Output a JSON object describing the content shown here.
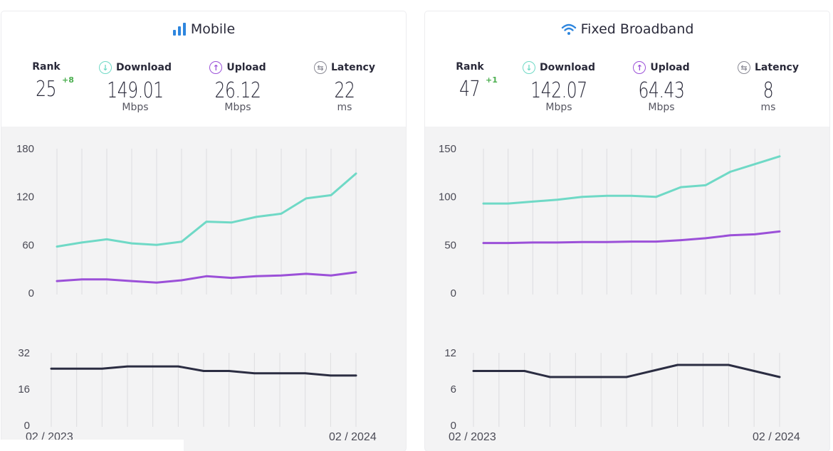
{
  "colors": {
    "download": "#6fd9c6",
    "upload": "#9b50d8",
    "latency": "#2b2d42",
    "latency_icon": "#8a8a95",
    "rank_change": "#4caf50",
    "title_icon": "#2e86de"
  },
  "panels": [
    {
      "title": "Mobile",
      "title_icon": "signal-bars-icon",
      "rank": {
        "label": "Rank",
        "value": "25",
        "change": "+8"
      },
      "download": {
        "label": "Download",
        "value": "149.01",
        "unit": "Mbps"
      },
      "upload": {
        "label": "Upload",
        "value": "26.12",
        "unit": "Mbps"
      },
      "latency": {
        "label": "Latency",
        "value": "22",
        "unit": "ms"
      },
      "date_start": "02 / 2023",
      "date_end": "02 / 2024"
    },
    {
      "title": "Fixed Broadband",
      "title_icon": "wifi-icon",
      "rank": {
        "label": "Rank",
        "value": "47",
        "change": "+1"
      },
      "download": {
        "label": "Download",
        "value": "142.07",
        "unit": "Mbps"
      },
      "upload": {
        "label": "Upload",
        "value": "64.43",
        "unit": "Mbps"
      },
      "latency": {
        "label": "Latency",
        "value": "8",
        "unit": "ms"
      },
      "date_start": "02 / 2023",
      "date_end": "02 / 2024"
    }
  ],
  "chart_data": [
    {
      "type": "line",
      "x": [
        "02/2023",
        "03/2023",
        "04/2023",
        "05/2023",
        "06/2023",
        "07/2023",
        "08/2023",
        "09/2023",
        "10/2023",
        "11/2023",
        "12/2023",
        "01/2024",
        "02/2024"
      ],
      "series": [
        {
          "name": "Download",
          "values": [
            58,
            63,
            67,
            62,
            60,
            64,
            89,
            88,
            95,
            99,
            118,
            122,
            149
          ]
        },
        {
          "name": "Upload",
          "values": [
            15,
            17,
            17,
            15,
            13,
            16,
            21,
            19,
            21,
            22,
            24,
            22,
            26
          ]
        }
      ],
      "yticks": [
        0,
        60,
        120,
        180
      ],
      "ylim": [
        0,
        180
      ]
    },
    {
      "type": "line",
      "x": [
        "02/2023",
        "03/2023",
        "04/2023",
        "05/2023",
        "06/2023",
        "07/2023",
        "08/2023",
        "09/2023",
        "10/2023",
        "11/2023",
        "12/2023",
        "01/2024",
        "02/2024"
      ],
      "series": [
        {
          "name": "Latency",
          "values": [
            25,
            25,
            25,
            26,
            26,
            26,
            24,
            24,
            23,
            23,
            23,
            22,
            22
          ]
        }
      ],
      "yticks": [
        0,
        16,
        32
      ],
      "ylim": [
        0,
        32
      ]
    },
    {
      "type": "line",
      "x": [
        "02/2023",
        "03/2023",
        "04/2023",
        "05/2023",
        "06/2023",
        "07/2023",
        "08/2023",
        "09/2023",
        "10/2023",
        "11/2023",
        "12/2023",
        "01/2024",
        "02/2024"
      ],
      "series": [
        {
          "name": "Download",
          "values": [
            93,
            93,
            95,
            97,
            100,
            101,
            101,
            100,
            110,
            112,
            126,
            134,
            142
          ]
        },
        {
          "name": "Upload",
          "values": [
            52,
            52,
            52.5,
            52.5,
            53,
            53,
            53.5,
            53.5,
            55,
            57,
            60,
            61,
            64
          ]
        }
      ],
      "yticks": [
        0,
        50,
        100,
        150
      ],
      "ylim": [
        0,
        150
      ]
    },
    {
      "type": "line",
      "x": [
        "02/2023",
        "03/2023",
        "04/2023",
        "05/2023",
        "06/2023",
        "07/2023",
        "08/2023",
        "09/2023",
        "10/2023",
        "11/2023",
        "12/2023",
        "01/2024",
        "02/2024"
      ],
      "series": [
        {
          "name": "Latency",
          "values": [
            9,
            9,
            9,
            8,
            8,
            8,
            8,
            9,
            10,
            10,
            10,
            9,
            8
          ]
        }
      ],
      "yticks": [
        0,
        6,
        12
      ],
      "ylim": [
        0,
        12
      ]
    }
  ]
}
